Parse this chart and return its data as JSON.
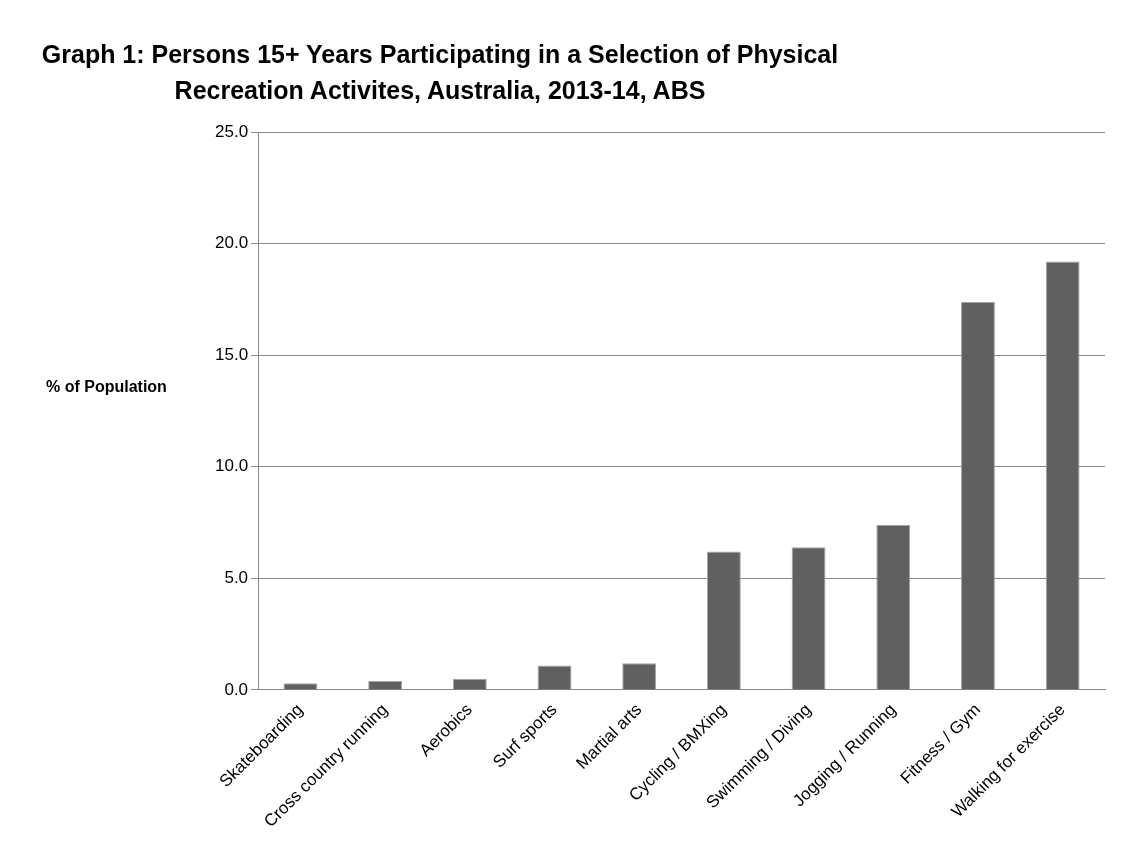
{
  "chart_data": {
    "type": "bar",
    "title": "Graph 1: Persons 15+ Years Participating in a Selection of Physical Recreation Activites, Australia, 2013-14, ABS",
    "ylabel": "% of Population",
    "categories": [
      "Skateboarding",
      "Cross country running",
      "Aerobics",
      "Surf sports",
      "Martial arts",
      "Cycling / BMXing",
      "Swimming / Diving",
      "Jogging / Running",
      "Fitness / Gym",
      "Walking for exercise"
    ],
    "values": [
      0.3,
      0.4,
      0.5,
      1.1,
      1.2,
      6.2,
      6.4,
      7.4,
      17.4,
      19.2
    ],
    "color": "#606060",
    "ylim": [
      0,
      25
    ],
    "yticks": [
      {
        "value": 0,
        "label": "0.0"
      },
      {
        "value": 5,
        "label": "5.0"
      },
      {
        "value": 10,
        "label": "10.0"
      },
      {
        "value": 15,
        "label": "15.0"
      },
      {
        "value": 20,
        "label": "20.0"
      },
      {
        "value": 25,
        "label": "25.0"
      }
    ],
    "grid": "y",
    "legend": false
  }
}
